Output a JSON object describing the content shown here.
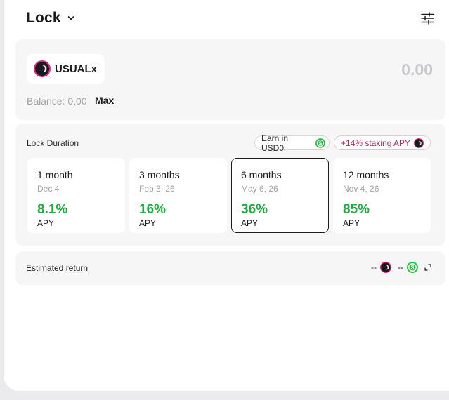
{
  "header": {
    "title": "Lock",
    "dropdown_icon": "chevron-down-icon",
    "settings_icon": "sliders-icon"
  },
  "token": {
    "symbol": "USUALx",
    "amount": "0.00",
    "balance_label": "Balance: 0.00",
    "max_label": "Max",
    "icon": "usualx-token-icon"
  },
  "duration": {
    "label": "Lock Duration",
    "badges": [
      {
        "label": "Earn in USD0",
        "icon": "usd0-token-icon"
      },
      {
        "label": "+14% staking APY",
        "icon": "usualx-token-icon"
      }
    ],
    "options": [
      {
        "months": "1 month",
        "date": "Dec 4",
        "apy": "8.1%",
        "apy_label": "APY",
        "selected": false
      },
      {
        "months": "3 months",
        "date": "Feb 3, 26",
        "apy": "16%",
        "apy_label": "APY",
        "selected": false
      },
      {
        "months": "6 months",
        "date": "May 6, 26",
        "apy": "36%",
        "apy_label": "APY",
        "selected": true
      },
      {
        "months": "12 months",
        "date": "Nov 4, 26",
        "apy": "85%",
        "apy_label": "APY",
        "selected": false
      }
    ]
  },
  "estimate": {
    "label": "Estimated return",
    "value_usualx": "--",
    "value_usd0": "--",
    "expand_icon": "expand-icon"
  },
  "colors": {
    "accent_green": "#1fae3d",
    "apy_badge_pink": "#b0275a",
    "selected_border": "#1c1c1f"
  }
}
